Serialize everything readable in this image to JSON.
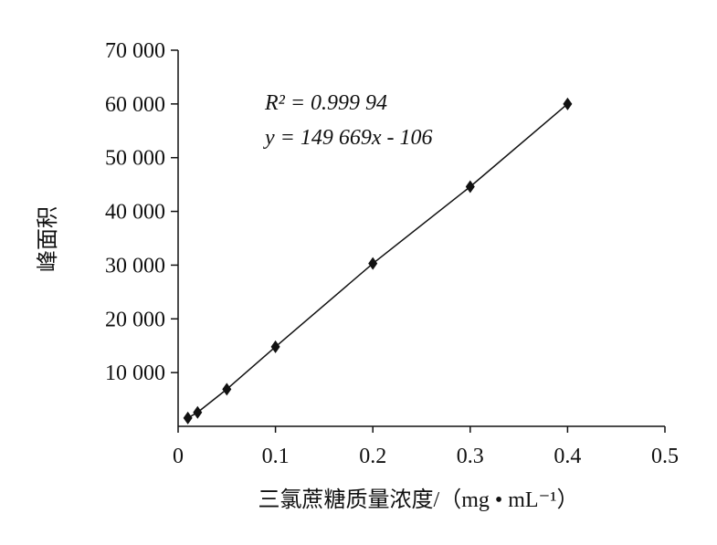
{
  "chart_data": {
    "type": "scatter",
    "x_label": "三氯蔗糖质量浓度/（mg • mL⁻¹）",
    "y_label": "峰面积",
    "annotations": [
      "R² = 0.999 94",
      "y = 149 669x - 106"
    ],
    "series": [
      {
        "color": "#111111",
        "x": [
          0.01,
          0.02,
          0.05,
          0.1,
          0.2,
          0.3,
          0.4
        ],
        "values": [
          1550,
          2600,
          6900,
          14800,
          30300,
          44600,
          60000
        ]
      }
    ],
    "xlim": [
      0,
      0.5
    ],
    "xticks": [
      0,
      0.1,
      0.2,
      0.3,
      0.4,
      0.5
    ],
    "ylim": [
      0,
      70000
    ],
    "yticks": [
      {
        "value": 10000,
        "label": "10 000"
      },
      {
        "value": 20000,
        "label": "20 000"
      },
      {
        "value": 30000,
        "label": "30 000"
      },
      {
        "value": 40000,
        "label": "40 000"
      },
      {
        "value": 50000,
        "label": "50 000"
      },
      {
        "value": 60000,
        "label": "60 000"
      },
      {
        "value": 70000,
        "label": "70 000"
      }
    ],
    "grid": false
  }
}
